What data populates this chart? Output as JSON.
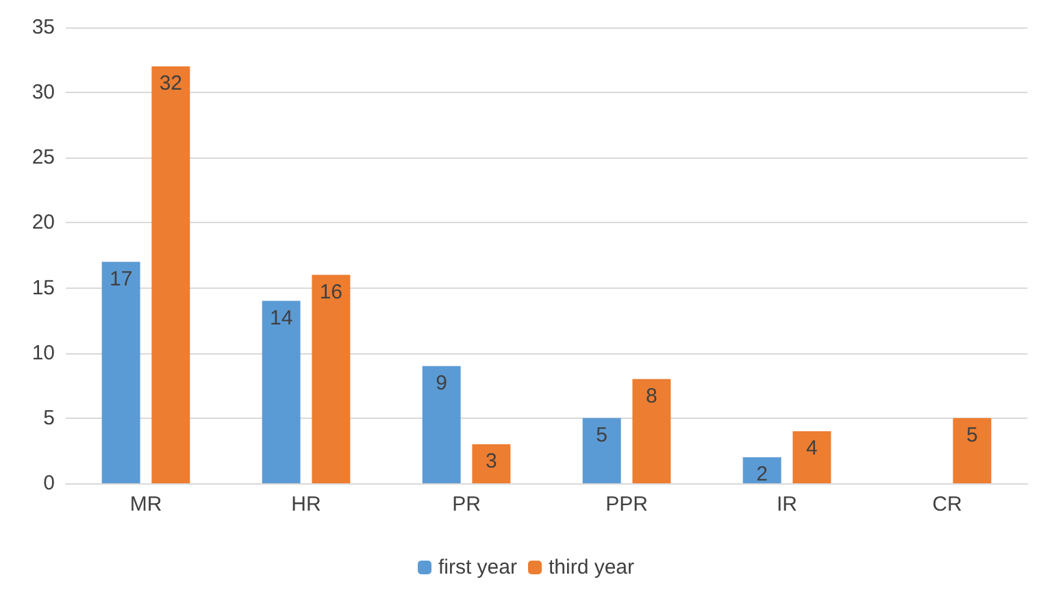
{
  "chart_data": {
    "type": "bar",
    "categories": [
      "MR",
      "HR",
      "PR",
      "PPR",
      "IR",
      "CR"
    ],
    "series": [
      {
        "name": "first year",
        "color": "#5b9bd5",
        "values": [
          17,
          14,
          9,
          5,
          2,
          0
        ],
        "value_labels": [
          "17",
          "14",
          "9",
          "5",
          "2",
          null
        ]
      },
      {
        "name": "third year",
        "color": "#ed7d31",
        "values": [
          32,
          16,
          3,
          8,
          4,
          5
        ],
        "value_labels": [
          "32",
          "16",
          "3",
          "8",
          "4",
          "5"
        ]
      }
    ],
    "ylim": [
      0,
      35
    ],
    "yticks": [
      0,
      5,
      10,
      15,
      20,
      25,
      30,
      35
    ],
    "grid": "y",
    "legend": "bottom"
  }
}
